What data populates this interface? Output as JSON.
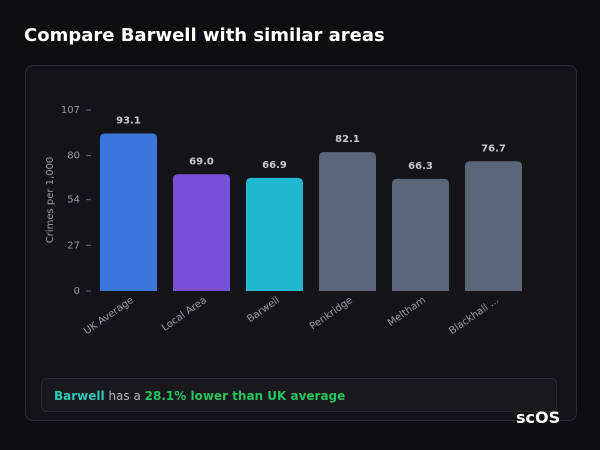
{
  "chart_data": {
    "type": "bar",
    "title": "Compare Barwell with similar areas",
    "y_label": "Crimes per 1,000",
    "categories": [
      "UK Average",
      "Local Area",
      "Barwell",
      "Penkridge",
      "Meltham",
      "Blackhall ..."
    ],
    "values": [
      93.1,
      69.0,
      66.9,
      82.1,
      66.3,
      76.7
    ],
    "value_labels": [
      "93.1",
      "69.0",
      "66.9",
      "82.1",
      "66.3",
      "76.7"
    ],
    "colors": [
      "#3b76dc",
      "#7a50d8",
      "#21b8d0",
      "#5b6578",
      "#5b6578",
      "#5b6578"
    ],
    "ylim": [
      0,
      107
    ],
    "yticks": [
      0,
      27,
      54,
      80,
      107
    ]
  },
  "summary": {
    "area": "Barwell",
    "middle": "has a",
    "highlight": "28.1% lower than UK average"
  },
  "logo": "scOS"
}
